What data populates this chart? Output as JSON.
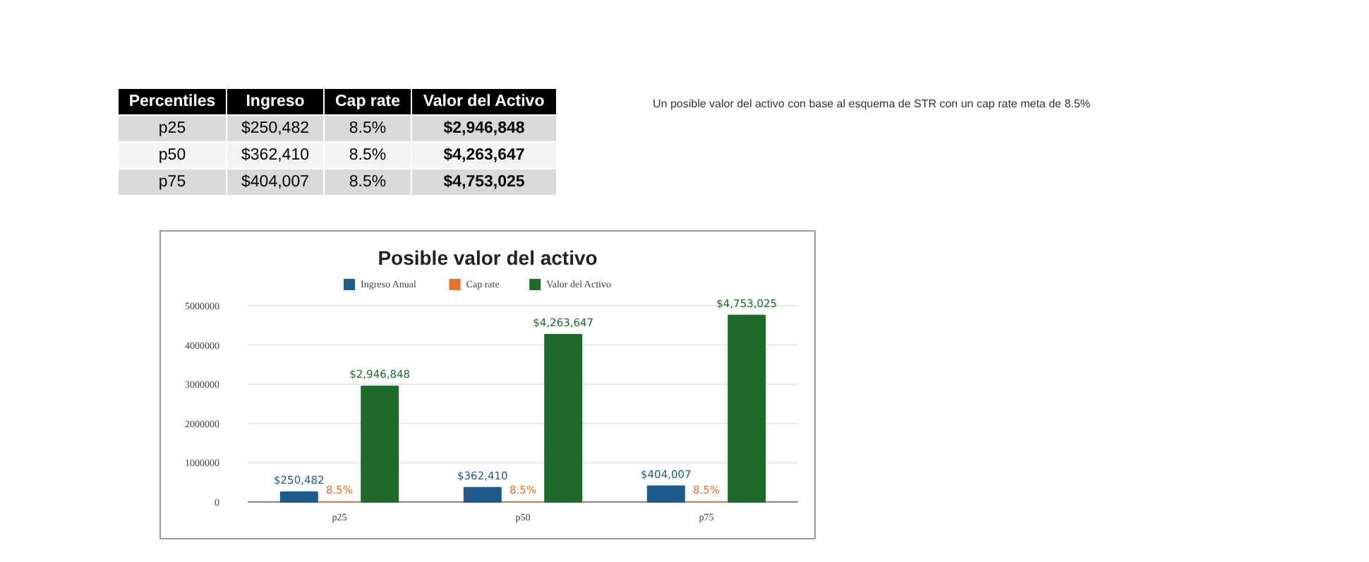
{
  "chart_data": {
    "type": "bar",
    "title": "Posible valor del activo",
    "categories": [
      "p25",
      "p50",
      "p75"
    ],
    "series": [
      {
        "name": "Ingreso Anual",
        "color": "#1f5c8b",
        "values": [
          250482,
          362410,
          404007
        ],
        "value_labels": [
          "$250,482",
          "$362,410",
          "$404,007"
        ]
      },
      {
        "name": "Cap rate",
        "color": "#e8712d",
        "values": [
          0.085,
          0.085,
          0.085
        ],
        "value_labels": [
          "8.5%",
          "8.5%",
          "8.5%"
        ]
      },
      {
        "name": "Valor del Activo",
        "color": "#1e6b2a",
        "values": [
          2946848,
          4263647,
          4753025
        ],
        "value_labels": [
          "$2,946,848",
          "$4,263,647",
          "$4,753,025"
        ]
      }
    ],
    "ylim": [
      0,
      5000000
    ],
    "yticks": [
      0,
      1000000,
      2000000,
      3000000,
      4000000,
      5000000
    ],
    "grid": "y",
    "legend": "top",
    "annotations": [
      "Un posible valor del activo con base al esquema de STR con un cap rate meta de 8.5%",
      "Percentiles",
      "Ingreso",
      "Cap rate",
      "Valor del Activo",
      "p25",
      "$250,482",
      "8.5%",
      "$2,946,848",
      "p50",
      "$362,410",
      "8.5%",
      "$4,263,647",
      "p75",
      "$404,007",
      "8.5%",
      "$4,753,025"
    ]
  }
}
